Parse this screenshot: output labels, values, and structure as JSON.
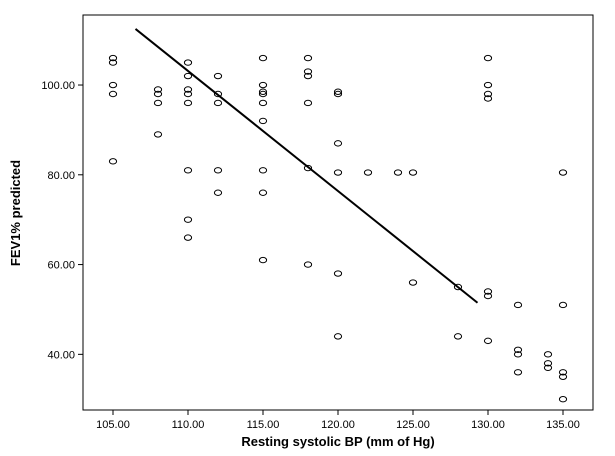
{
  "chart_data": {
    "type": "scatter",
    "title": "",
    "xlabel": "Resting systolic BP (mm of Hg)",
    "ylabel": "FEV1% predicted",
    "xlim": [
      103,
      137
    ],
    "ylim": [
      27.6,
      115.6
    ],
    "xticks": [
      105,
      110,
      115,
      120,
      125,
      130,
      135
    ],
    "xtick_labels": [
      "105.00",
      "110.00",
      "115.00",
      "120.00",
      "125.00",
      "130.00",
      "135.00"
    ],
    "yticks": [
      40,
      60,
      80,
      100
    ],
    "ytick_labels": [
      "40.00",
      "60.00",
      "80.00",
      "100.00"
    ],
    "grid": false,
    "legend": "none",
    "points": [
      [
        105,
        106
      ],
      [
        105,
        105
      ],
      [
        105,
        100
      ],
      [
        105,
        98
      ],
      [
        105,
        83
      ],
      [
        108,
        99
      ],
      [
        108,
        98
      ],
      [
        108,
        96
      ],
      [
        108,
        89
      ],
      [
        110,
        105
      ],
      [
        110,
        102
      ],
      [
        110,
        99
      ],
      [
        110,
        98
      ],
      [
        110,
        96
      ],
      [
        110,
        81
      ],
      [
        110,
        70
      ],
      [
        110,
        66
      ],
      [
        112,
        102
      ],
      [
        112,
        98
      ],
      [
        112,
        96
      ],
      [
        112,
        81
      ],
      [
        112,
        76
      ],
      [
        115,
        106
      ],
      [
        115,
        100
      ],
      [
        115,
        98.5
      ],
      [
        115,
        98
      ],
      [
        115,
        96
      ],
      [
        115,
        92
      ],
      [
        115,
        81
      ],
      [
        115,
        76
      ],
      [
        115,
        61
      ],
      [
        118,
        106
      ],
      [
        118,
        103
      ],
      [
        118,
        102
      ],
      [
        118,
        96
      ],
      [
        118,
        81.5
      ],
      [
        118,
        60
      ],
      [
        120,
        98.5
      ],
      [
        120,
        98
      ],
      [
        120,
        87
      ],
      [
        120,
        80.5
      ],
      [
        120,
        58
      ],
      [
        120,
        44
      ],
      [
        122,
        80.5
      ],
      [
        124,
        80.5
      ],
      [
        125,
        80.5
      ],
      [
        125,
        56
      ],
      [
        128,
        55
      ],
      [
        128,
        44
      ],
      [
        130,
        106
      ],
      [
        130,
        100
      ],
      [
        130,
        98
      ],
      [
        130,
        97
      ],
      [
        130,
        54
      ],
      [
        130,
        53
      ],
      [
        130,
        43
      ],
      [
        132,
        51
      ],
      [
        132,
        41
      ],
      [
        132,
        40
      ],
      [
        132,
        36
      ],
      [
        134,
        40
      ],
      [
        134,
        38
      ],
      [
        134,
        37
      ],
      [
        135,
        80.5
      ],
      [
        135,
        51
      ],
      [
        135,
        36
      ],
      [
        135,
        35
      ],
      [
        135,
        30
      ]
    ],
    "fit_line": {
      "x": [
        106.5,
        129.3
      ],
      "y": [
        112.5,
        51.5
      ]
    }
  }
}
